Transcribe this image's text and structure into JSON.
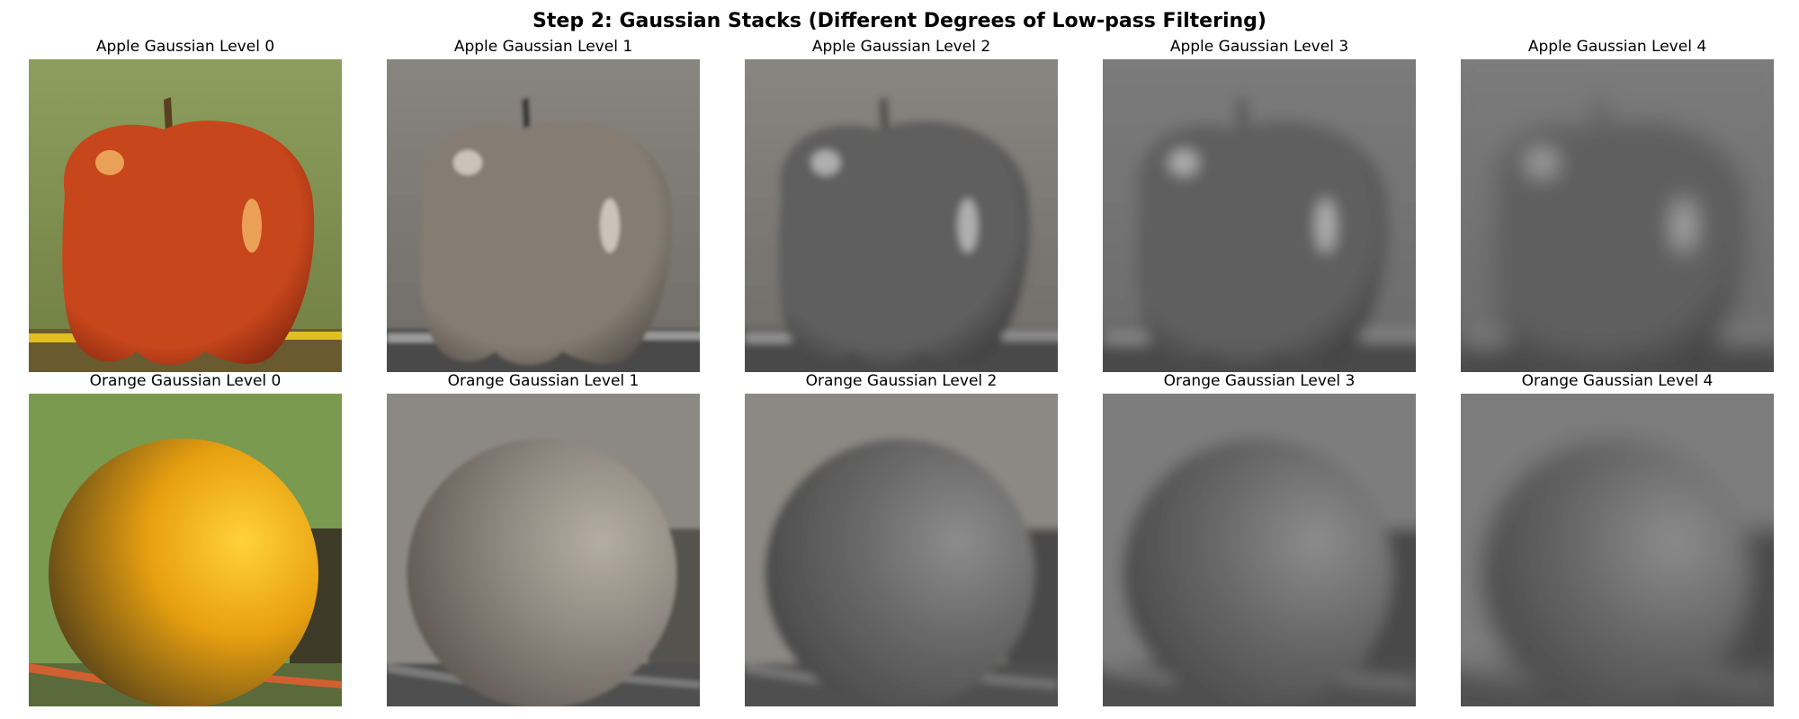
{
  "figure": {
    "title": "Step 2: Gaussian Stacks (Different Degrees of Low-pass Filtering)"
  },
  "rows": [
    {
      "subject": "apple",
      "panels": [
        {
          "label": "Apple Gaussian Level 0",
          "level": 0,
          "color_mode": "color"
        },
        {
          "label": "Apple Gaussian Level 1",
          "level": 1,
          "color_mode": "sepia-gray"
        },
        {
          "label": "Apple Gaussian Level 2",
          "level": 2,
          "color_mode": "gray"
        },
        {
          "label": "Apple Gaussian Level 3",
          "level": 3,
          "color_mode": "gray"
        },
        {
          "label": "Apple Gaussian Level 4",
          "level": 4,
          "color_mode": "gray"
        }
      ]
    },
    {
      "subject": "orange",
      "panels": [
        {
          "label": "Orange Gaussian Level 0",
          "level": 0,
          "color_mode": "color"
        },
        {
          "label": "Orange Gaussian Level 1",
          "level": 1,
          "color_mode": "sepia-gray"
        },
        {
          "label": "Orange Gaussian Level 2",
          "level": 2,
          "color_mode": "gray"
        },
        {
          "label": "Orange Gaussian Level 3",
          "level": 3,
          "color_mode": "gray"
        },
        {
          "label": "Orange Gaussian Level 4",
          "level": 4,
          "color_mode": "gray"
        }
      ]
    }
  ],
  "colors": {
    "apple_body": "#c8461c",
    "apple_highlight": "#f0b060",
    "orange_body": "#e8a010",
    "orange_shadow": "#5a4418",
    "background_green": "#8ea060",
    "table_wood": "#6a5a30",
    "pencil_yellow": "#e0c020"
  }
}
